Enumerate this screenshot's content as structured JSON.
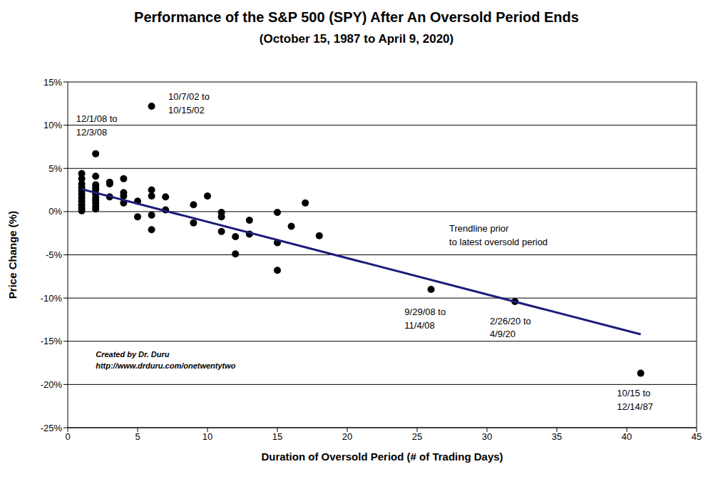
{
  "chart_data": {
    "type": "scatter",
    "title": "Performance of the S&P 500 (SPY) After An Oversold Period Ends",
    "subtitle": "(October 15, 1987 to April 9, 2020)",
    "x_label": "Duration of Oversold Period (# of Trading Days)",
    "y_label": "Price Change (%)",
    "xlim": [
      0,
      45
    ],
    "xticks": [
      0,
      5,
      10,
      15,
      20,
      25,
      30,
      35,
      40,
      45
    ],
    "ylim": [
      -25,
      15
    ],
    "yticks": [
      {
        "value": -25,
        "label": "-25%"
      },
      {
        "value": -20,
        "label": "-20%"
      },
      {
        "value": -15,
        "label": "-15%"
      },
      {
        "value": -10,
        "label": "-10%"
      },
      {
        "value": -5,
        "label": "-5%"
      },
      {
        "value": 0,
        "label": "0%"
      },
      {
        "value": 5,
        "label": "5%"
      },
      {
        "value": 10,
        "label": "10%"
      },
      {
        "value": 15,
        "label": "15%"
      }
    ],
    "grid": true,
    "series": [
      {
        "type": "scatter",
        "marker": "circle",
        "color": "#000000",
        "x": [
          1,
          1,
          1,
          1,
          1,
          1,
          1,
          1,
          1,
          1,
          1,
          2,
          2,
          2,
          2,
          2,
          2,
          2,
          2,
          2,
          2,
          2,
          3,
          3,
          3,
          4,
          4,
          4,
          4,
          5,
          5,
          6,
          6,
          6,
          6,
          6,
          7,
          7,
          9,
          9,
          10,
          11,
          11,
          11,
          12,
          12,
          13,
          13,
          15,
          15,
          15,
          16,
          17,
          18,
          26,
          32,
          41
        ],
        "values": [
          4.4,
          3.8,
          3.2,
          2.8,
          2.4,
          2.0,
          1.6,
          1.2,
          0.8,
          0.4,
          0.1,
          6.7,
          4.1,
          3.1,
          2.8,
          2.5,
          2.0,
          1.6,
          1.3,
          1.0,
          0.6,
          0.3,
          3.4,
          3.2,
          1.7,
          3.8,
          2.2,
          1.8,
          1.0,
          1.2,
          -0.6,
          12.2,
          2.5,
          1.8,
          -0.4,
          -2.1,
          1.7,
          0.2,
          0.8,
          -1.3,
          1.8,
          -0.1,
          -0.6,
          -2.3,
          -2.9,
          -4.9,
          -1.0,
          -2.6,
          -0.1,
          -3.6,
          -6.8,
          -1.7,
          1.0,
          -2.8,
          -9.0,
          -10.4,
          -18.7
        ]
      },
      {
        "type": "line",
        "color": "#1c1c7a",
        "x": [
          1,
          41
        ],
        "values": [
          2.6,
          -14.2
        ]
      }
    ],
    "annotations": [
      {
        "lines": [
          "12/1/08 to",
          "12/3/08"
        ],
        "x": 0.6,
        "y": 10.4
      },
      {
        "lines": [
          "10/7/02 to",
          "10/15/02"
        ],
        "x": 7.2,
        "y": 12.9
      },
      {
        "lines": [
          "Trendline prior",
          "to latest oversold period"
        ],
        "x": 27.3,
        "y": -2.3
      },
      {
        "lines": [
          "9/29/08 to",
          "11/4/08"
        ],
        "x": 24.1,
        "y": -12.0
      },
      {
        "lines": [
          "2/26/20 to",
          "4/9/20"
        ],
        "x": 30.2,
        "y": -13.0
      },
      {
        "lines": [
          "10/15 to",
          "12/14/87"
        ],
        "x": 39.3,
        "y": -21.4
      }
    ],
    "credit": {
      "lines": [
        "Created by Dr. Duru",
        "http://www.drduru.com/onetwentytwo"
      ],
      "x": 2.0,
      "y": -16.8
    }
  }
}
